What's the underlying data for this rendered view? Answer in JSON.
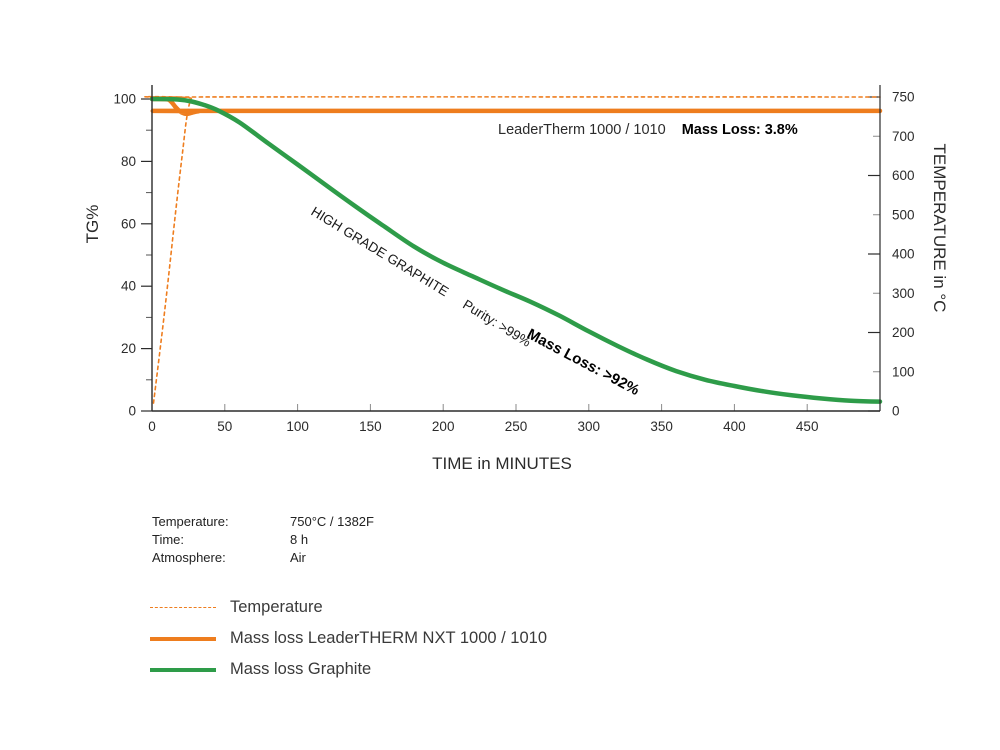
{
  "colors": {
    "orange": "#EE7D1E",
    "green": "#2E9C49",
    "axis": "#2b2b2b",
    "tick_minor": "#8a8a8a",
    "text_dark": "#1a1a1a"
  },
  "chart": {
    "axes": {
      "x": {
        "title": "TIME in MINUTES"
      },
      "y_left": {
        "title": "TG%"
      },
      "y_right": {
        "title": "TEMPERATURE in °C"
      }
    },
    "annotations": {
      "leadertherm_label": "LeaderTherm 1000 / 1010",
      "leadertherm_massloss": "Mass Loss: 3.8%",
      "graphite_label": "HIGH GRADE GRAPHITE",
      "graphite_purity": "Purity: >99%",
      "graphite_massloss": "Mass Loss: >92%"
    }
  },
  "chart_data": {
    "type": "line",
    "title": "",
    "xlabel": "TIME in MINUTES",
    "ylabel_left": "TG%",
    "ylabel_right": "TEMPERATURE in °C",
    "xlim": [
      0,
      500
    ],
    "ylim_left": [
      0,
      104
    ],
    "grid": false,
    "legend_position": "below-left",
    "xticks": [
      0,
      50,
      100,
      150,
      200,
      250,
      300,
      350,
      400,
      450
    ],
    "yticks_left_major": [
      0,
      20,
      40,
      60,
      80,
      100
    ],
    "yticks_left_minor": [
      10,
      30,
      50,
      70,
      90
    ],
    "yticks_right": [
      0,
      100,
      200,
      300,
      400,
      500,
      600,
      700,
      750
    ],
    "series": [
      {
        "name": "Temperature",
        "axis": "right",
        "unit": "°C",
        "style": "dashed",
        "color": "#EE7D1E",
        "width": 1.6,
        "points": [
          [
            1,
            20
          ],
          [
            6,
            170
          ],
          [
            11,
            330
          ],
          [
            16,
            500
          ],
          [
            21,
            660
          ],
          [
            24,
            725
          ],
          [
            27,
            748
          ],
          [
            31,
            750
          ],
          [
            500,
            750
          ]
        ]
      },
      {
        "name": "Mass loss LeaderTHERM NXT 1000 / 1010",
        "axis": "left",
        "unit": "TG%",
        "style": "solid",
        "color": "#EE7D1E",
        "width": 4.5,
        "final_mass_loss_pct": 3.8,
        "points": [
          [
            0,
            100
          ],
          [
            10,
            99.9
          ],
          [
            13,
            99.2
          ],
          [
            16,
            97.5
          ],
          [
            19,
            96.1
          ],
          [
            22,
            95.4
          ],
          [
            25,
            95.3
          ],
          [
            28,
            95.7
          ],
          [
            32,
            96.1
          ],
          [
            36,
            96.2
          ],
          [
            500,
            96.2
          ]
        ]
      },
      {
        "name": "Mass loss Graphite",
        "axis": "left",
        "unit": "TG%",
        "style": "solid",
        "color": "#2E9C49",
        "width": 4.5,
        "final_mass_loss_pct": ">92",
        "points": [
          [
            0,
            100
          ],
          [
            15,
            99.9
          ],
          [
            25,
            99.4
          ],
          [
            35,
            98.2
          ],
          [
            45,
            96.4
          ],
          [
            60,
            92.5
          ],
          [
            80,
            85.7
          ],
          [
            100,
            79
          ],
          [
            120,
            72.2
          ],
          [
            140,
            65.5
          ],
          [
            160,
            59
          ],
          [
            180,
            52.7
          ],
          [
            200,
            47.5
          ],
          [
            220,
            43.2
          ],
          [
            240,
            39
          ],
          [
            260,
            35
          ],
          [
            280,
            30.5
          ],
          [
            300,
            25.5
          ],
          [
            320,
            20.8
          ],
          [
            340,
            16.5
          ],
          [
            360,
            12.8
          ],
          [
            380,
            10
          ],
          [
            400,
            8
          ],
          [
            420,
            6.3
          ],
          [
            440,
            5
          ],
          [
            460,
            4
          ],
          [
            480,
            3.3
          ],
          [
            500,
            3
          ]
        ]
      }
    ]
  },
  "conditions": {
    "rows": [
      {
        "label": "Temperature:",
        "value": "750°C / 1382F"
      },
      {
        "label": "Time:",
        "value": "8 h"
      },
      {
        "label": "Atmosphere:",
        "value": "Air"
      }
    ]
  },
  "legend": {
    "items": [
      {
        "label": "Temperature",
        "style": "dashed",
        "color": "#EE7D1E"
      },
      {
        "label": "Mass loss LeaderTHERM NXT 1000 / 1010",
        "style": "solid",
        "color": "#EE7D1E"
      },
      {
        "label": "Mass loss Graphite",
        "style": "solid",
        "color": "#2E9C49"
      }
    ]
  }
}
